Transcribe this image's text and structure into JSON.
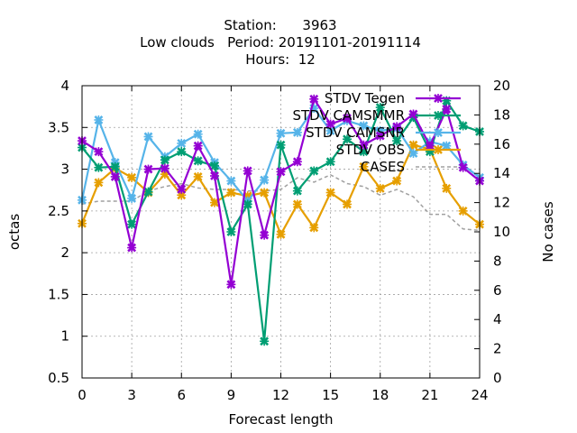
{
  "chart_data": {
    "type": "line",
    "title_lines": [
      "Station:      3963",
      "Low clouds   Period: 20191101-20191114",
      "Hours:  12"
    ],
    "xlabel": "Forecast length",
    "ylabel": "octas",
    "y2label": "No cases",
    "xlim": [
      0,
      24
    ],
    "ylim": [
      0.5,
      4
    ],
    "y2lim": [
      0,
      20
    ],
    "x_ticks": [
      0,
      3,
      6,
      9,
      12,
      15,
      18,
      21,
      24
    ],
    "y_ticks": [
      0.5,
      1,
      1.5,
      2,
      2.5,
      3,
      3.5,
      4
    ],
    "y2_ticks": [
      0,
      2,
      4,
      6,
      8,
      10,
      12,
      14,
      16,
      18,
      20
    ],
    "x_tick_labels": [
      "0",
      "3",
      "6",
      "9",
      "12",
      "15",
      "18",
      "21",
      "24"
    ],
    "y_tick_labels": [
      "0.5",
      "1",
      "1.5",
      "2",
      "2.5",
      "3",
      "3.5",
      "4"
    ],
    "y2_tick_labels": [
      "0",
      "2",
      "4",
      "6",
      "8",
      "10",
      "12",
      "14",
      "16",
      "18",
      "20"
    ],
    "grid": true,
    "legend_position": "top-right",
    "x": [
      0,
      1,
      2,
      3,
      4,
      5,
      6,
      7,
      8,
      9,
      10,
      11,
      12,
      13,
      14,
      15,
      16,
      17,
      18,
      19,
      20,
      21,
      22,
      23,
      24
    ],
    "series": [
      {
        "name": "STDV Tegen",
        "color": "#9400d3",
        "axis": "y",
        "marker": "x",
        "values": [
          3.34,
          3.21,
          2.91,
          2.06,
          3.0,
          3.01,
          2.76,
          3.28,
          2.92,
          1.62,
          2.98,
          2.21,
          2.97,
          3.09,
          3.84,
          3.54,
          3.61,
          3.29,
          3.4,
          3.51,
          3.66,
          3.28,
          3.72,
          3.02,
          2.86
        ]
      },
      {
        "name": "STDV CAMSMMR",
        "color": "#009e73",
        "axis": "y",
        "marker": "x",
        "values": [
          3.26,
          3.02,
          3.03,
          2.34,
          2.73,
          3.11,
          3.21,
          3.1,
          3.04,
          2.25,
          2.58,
          0.94,
          3.29,
          2.74,
          2.98,
          3.09,
          3.36,
          3.21,
          3.74,
          3.34,
          3.62,
          3.21,
          3.82,
          3.52,
          3.45
        ]
      },
      {
        "name": "STDV CAMSNR",
        "color": "#56b4e9",
        "axis": "y",
        "marker": "x",
        "values": [
          2.63,
          3.59,
          3.08,
          2.65,
          3.39,
          3.15,
          3.31,
          3.42,
          3.08,
          2.86,
          2.62,
          2.87,
          3.43,
          3.44,
          3.73,
          3.46,
          3.58,
          3.52,
          3.46,
          3.49,
          3.19,
          3.33,
          3.28,
          3.05,
          2.9
        ]
      },
      {
        "name": "STDV OBS",
        "color": "#e69f00",
        "axis": "y",
        "marker": "x",
        "values": [
          2.35,
          2.84,
          3.01,
          2.9,
          2.72,
          2.94,
          2.69,
          2.91,
          2.6,
          2.72,
          2.68,
          2.72,
          2.22,
          2.58,
          2.3,
          2.72,
          2.58,
          3.03,
          2.77,
          2.86,
          3.29,
          3.24,
          2.77,
          2.5,
          2.34
        ]
      },
      {
        "name": "CASES",
        "color": "#a0a0a0",
        "axis": "y2",
        "marker": "none",
        "dashed": true,
        "values": [
          11.9,
          12.1,
          12.1,
          12.1,
          12.8,
          13.1,
          13.3,
          13.0,
          12.9,
          12.9,
          12.8,
          12.8,
          12.9,
          13.7,
          13.4,
          13.9,
          13.3,
          13.1,
          12.5,
          12.9,
          12.4,
          11.2,
          11.2,
          10.2,
          10.1
        ]
      }
    ]
  }
}
